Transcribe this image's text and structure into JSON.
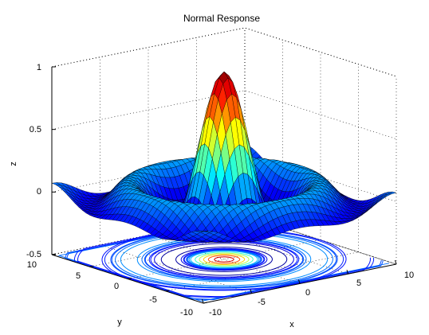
{
  "chart_data": {
    "type": "surface",
    "title": "Normal Response",
    "xlabel": "x",
    "ylabel": "y",
    "zlabel": "z",
    "xlim": [
      -10,
      10
    ],
    "ylim": [
      -10,
      10
    ],
    "zlim": [
      -0.5,
      1
    ],
    "xticks": [
      "-10",
      "-5",
      "0",
      "5",
      "10"
    ],
    "yticks": [
      "-10",
      "-5",
      "0",
      "5",
      "10"
    ],
    "zticks": [
      "-0.5",
      "0",
      "0.5",
      "1"
    ],
    "function": "sinc: z = sin(r)/r, r = sqrt(x^2 + y^2)",
    "peak_z": 1,
    "grid": "on (dotted)",
    "colormap": "jet",
    "contours_on_floor": true
  }
}
